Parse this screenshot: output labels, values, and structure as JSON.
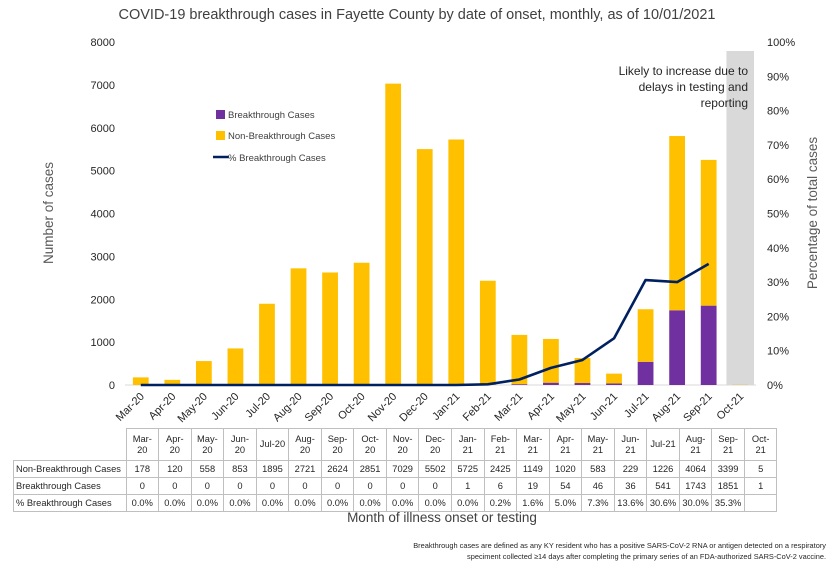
{
  "chart_data": {
    "type": "bar",
    "title": "COVID-19 breakthrough cases in Fayette County by date of onset, monthly, as of 10/01/2021",
    "xlabel": "Month of illness onset or testing",
    "ylabel": "Number of cases",
    "y2label": "Percentage of total cases",
    "ylim": [
      0,
      8000
    ],
    "y2lim": [
      0,
      100
    ],
    "yticks": [
      "0",
      "1000",
      "2000",
      "3000",
      "4000",
      "5000",
      "6000",
      "7000",
      "8000"
    ],
    "y2ticks": [
      "0%",
      "10%",
      "20%",
      "30%",
      "40%",
      "50%",
      "60%",
      "70%",
      "80%",
      "90%",
      "100%"
    ],
    "stacked": true,
    "legend_position": "upper-left",
    "categories": [
      "Mar-20",
      "Apr-20",
      "May-20",
      "Jun-20",
      "Jul-20",
      "Aug-20",
      "Sep-20",
      "Oct-20",
      "Nov-20",
      "Dec-20",
      "Jan-21",
      "Feb-21",
      "Mar-21",
      "Apr-21",
      "May-21",
      "Jun-21",
      "Jul-21",
      "Aug-21",
      "Sep-21",
      "Oct-21"
    ],
    "table_categories": [
      "Mar-\n20",
      "Apr-\n20",
      "May-\n20",
      "Jun-\n20",
      "Jul-20",
      "Aug-\n20",
      "Sep-\n20",
      "Oct-\n20",
      "Nov-\n20",
      "Dec-\n20",
      "Jan-\n21",
      "Feb-\n21",
      "Mar-\n21",
      "Apr-\n21",
      "May-\n21",
      "Jun-\n21",
      "Jul-21",
      "Aug-\n21",
      "Sep-\n21",
      "Oct-\n21"
    ],
    "series": [
      {
        "name": "Breakthrough Cases",
        "type": "bar",
        "color": "#7030a0",
        "values": [
          0,
          0,
          0,
          0,
          0,
          0,
          0,
          0,
          0,
          0,
          1,
          6,
          19,
          54,
          46,
          36,
          541,
          1743,
          1851,
          1
        ]
      },
      {
        "name": "Non-Breakthrough Cases",
        "type": "bar",
        "color": "#ffc000",
        "values": [
          178,
          120,
          558,
          853,
          1895,
          2721,
          2624,
          2851,
          7029,
          5502,
          5725,
          2425,
          1149,
          1020,
          583,
          229,
          1226,
          4064,
          3399,
          5
        ]
      },
      {
        "name": "% Breakthrough Cases",
        "type": "line",
        "axis": "right",
        "color": "#002060",
        "values": [
          0,
          0,
          0,
          0,
          0,
          0,
          0,
          0,
          0,
          0,
          0,
          0.2,
          1.6,
          5.0,
          7.3,
          13.6,
          30.6,
          30.0,
          35.3,
          null
        ]
      }
    ],
    "table": {
      "rows": [
        {
          "label": "Non-Breakthrough Cases",
          "values": [
            "178",
            "120",
            "558",
            "853",
            "1895",
            "2721",
            "2624",
            "2851",
            "7029",
            "5502",
            "5725",
            "2425",
            "1149",
            "1020",
            "583",
            "229",
            "1226",
            "4064",
            "3399",
            "5"
          ]
        },
        {
          "label": "Breakthrough Cases",
          "values": [
            "0",
            "0",
            "0",
            "0",
            "0",
            "0",
            "0",
            "0",
            "0",
            "0",
            "1",
            "6",
            "19",
            "54",
            "46",
            "36",
            "541",
            "1743",
            "1851",
            "1"
          ]
        },
        {
          "label": "% Breakthrough Cases",
          "values": [
            "0.0%",
            "0.0%",
            "0.0%",
            "0.0%",
            "0.0%",
            "0.0%",
            "0.0%",
            "0.0%",
            "0.0%",
            "0.0%",
            "0.0%",
            "0.2%",
            "1.6%",
            "5.0%",
            "7.3%",
            "13.6%",
            "30.6%",
            "30.0%",
            "35.3%",
            ""
          ]
        }
      ]
    },
    "annotation": "Likely to increase due to delays in testing and reporting",
    "highlight_category": "Oct-21",
    "highlight_color": "#d9d9d9",
    "footnote_lines": [
      "Breakthrough cases are defined as any KY resident who has a positive SARS-CoV-2 RNA or antigen detected on a respiratory",
      "speciment collected ≥14 days after completing the primary series of an FDA-authorized SARS-CoV-2 vaccine."
    ]
  }
}
